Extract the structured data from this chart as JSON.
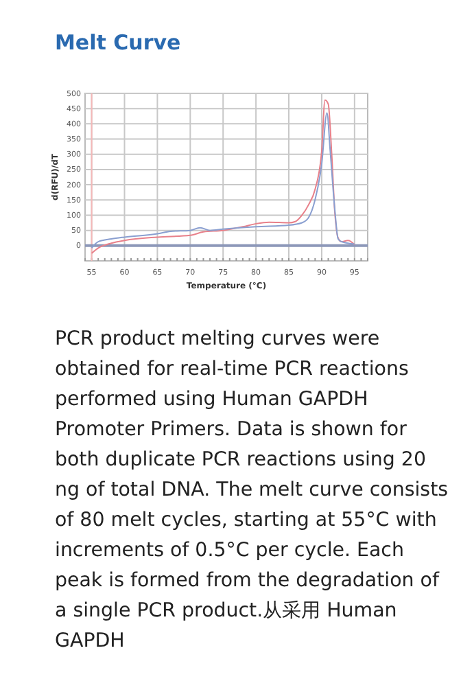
{
  "chart_data": {
    "type": "line",
    "title": "Melt Curve",
    "xlabel": "Temperature (°C)",
    "ylabel": "d(RFU)/dT",
    "xlim": [
      54,
      97
    ],
    "xticks": [
      55,
      60,
      65,
      70,
      75,
      80,
      85,
      90,
      95
    ],
    "ylim": [
      -50,
      500
    ],
    "yticks": [
      0,
      50,
      100,
      150,
      200,
      250,
      300,
      350,
      400,
      450,
      500
    ],
    "grid": true,
    "marker": "none",
    "line_style": "solid",
    "series": [
      {
        "color": "#e8808a",
        "x": [
          55,
          56,
          58,
          60,
          65,
          70,
          72,
          75,
          78,
          80,
          82,
          85,
          86,
          87,
          88,
          89,
          90,
          90.5,
          91,
          91.5,
          92,
          92.5,
          93,
          94,
          95
        ],
        "values": [
          -25,
          -8,
          8,
          17,
          28,
          34,
          45,
          50,
          62,
          72,
          77,
          75,
          79,
          100,
          134,
          185,
          310,
          478,
          465,
          310,
          109,
          25,
          13,
          17,
          3
        ]
      },
      {
        "color": "#8a9fd0",
        "x": [
          55,
          56,
          58,
          60,
          65,
          67,
          70,
          71.5,
          73,
          75,
          80,
          85,
          87,
          88,
          89,
          90,
          90.8,
          91.3,
          92,
          92.5,
          93,
          95
        ],
        "values": [
          -8,
          13,
          22,
          28,
          39,
          47,
          50,
          59,
          50,
          54,
          62,
          67,
          75,
          92,
          151,
          268,
          436,
          310,
          117,
          22,
          13,
          5
        ]
      }
    ],
    "ref_lines": [
      {
        "axis": "x",
        "value": 55,
        "color": "#f4b8b8"
      },
      {
        "axis": "y",
        "value": 0,
        "color": "#8c97b8"
      }
    ],
    "annotations": [
      "PCR product melting curves were obtained for real-time PCR reactions performed using Human GAPDH Promoter Primers. Data is shown for both duplicate PCR reactions using 20 ng of total DNA. The melt curve consists of 80 melt cycles, starting at 55°C with increments of 0.5°C per cycle. Each peak is formed from the degradation of a single PCR product.从采用 Human GAPDH"
    ]
  }
}
